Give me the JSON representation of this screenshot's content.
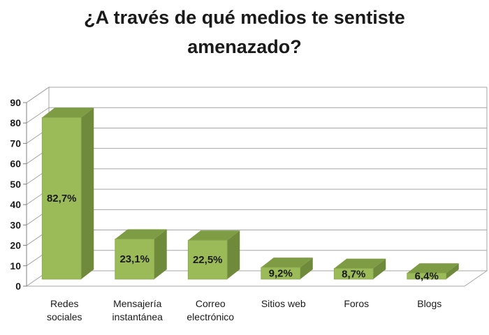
{
  "chart_data": {
    "type": "bar",
    "title_lines": [
      "¿A través de qué medios te sentiste",
      "amenazado?"
    ],
    "categories": [
      [
        "Redes",
        "sociales"
      ],
      [
        "Mensajería",
        "instantánea"
      ],
      [
        "Correo",
        "electrónico"
      ],
      [
        "Sitios web"
      ],
      [
        "Foros"
      ],
      [
        "Blogs"
      ]
    ],
    "values": [
      82.7,
      23.1,
      22.5,
      9.2,
      8.7,
      6.4
    ],
    "data_labels": [
      "82,7%",
      "23,1%",
      "22,5%",
      "9,2%",
      "8,7%",
      "6,4%"
    ],
    "yticks": [
      "0",
      "10",
      "20",
      "30",
      "40",
      "50",
      "60",
      "70",
      "80",
      "90"
    ],
    "ylim": [
      0,
      90
    ],
    "grid": true,
    "style": "3d-column",
    "colors": {
      "bar_front": "#9bbb59",
      "bar_side": "#6f8a3a",
      "bar_top": "#7e9c43",
      "grid": "#a6a6a6"
    }
  }
}
